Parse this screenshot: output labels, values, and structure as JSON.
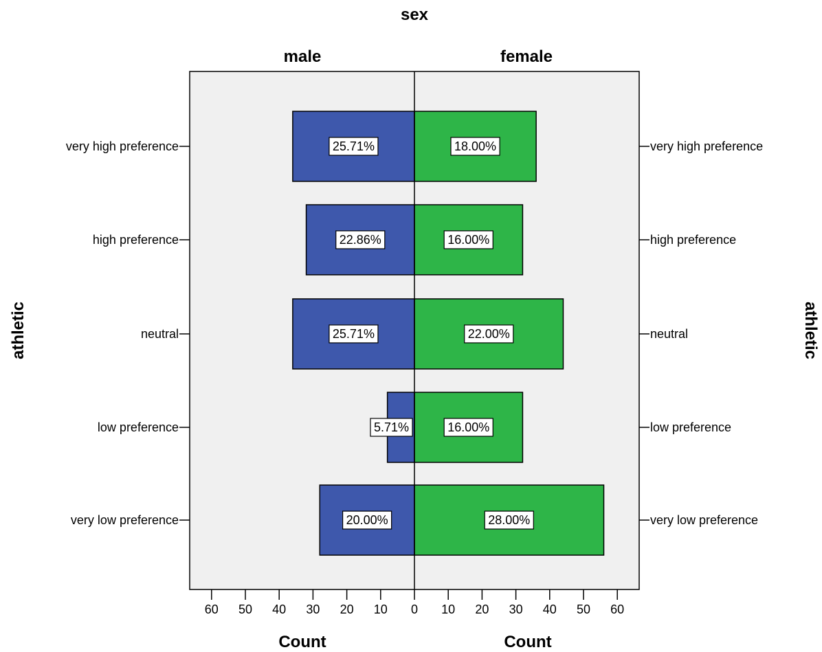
{
  "chart_data": {
    "type": "bar",
    "orientation": "horizontal",
    "layout": "population-pyramid",
    "title": "sex",
    "y_label_left": "athletic",
    "y_label_right": "athletic",
    "categories": [
      "very high preference",
      "high preference",
      "neutral",
      "low preference",
      "very low preference"
    ],
    "series": [
      {
        "name": "male",
        "side": "left",
        "color": "#3e58ac",
        "values": [
          36,
          32,
          36,
          8,
          28
        ],
        "labels": [
          "25.71%",
          "22.86%",
          "25.71%",
          "5.71%",
          "20.00%"
        ]
      },
      {
        "name": "female",
        "side": "right",
        "color": "#2eb548",
        "values": [
          36,
          32,
          44,
          32,
          56
        ],
        "labels": [
          "18.00%",
          "16.00%",
          "22.00%",
          "16.00%",
          "28.00%"
        ]
      }
    ],
    "xlim": [
      0,
      66
    ],
    "x_ticks_left": [
      "60",
      "50",
      "40",
      "30",
      "20",
      "10",
      "0"
    ],
    "x_ticks_right": [
      "10",
      "20",
      "30",
      "40",
      "50",
      "60"
    ],
    "xlabel_left": "Count",
    "xlabel_right": "Count",
    "grid": false,
    "plot_background": "#f0f0f0"
  }
}
